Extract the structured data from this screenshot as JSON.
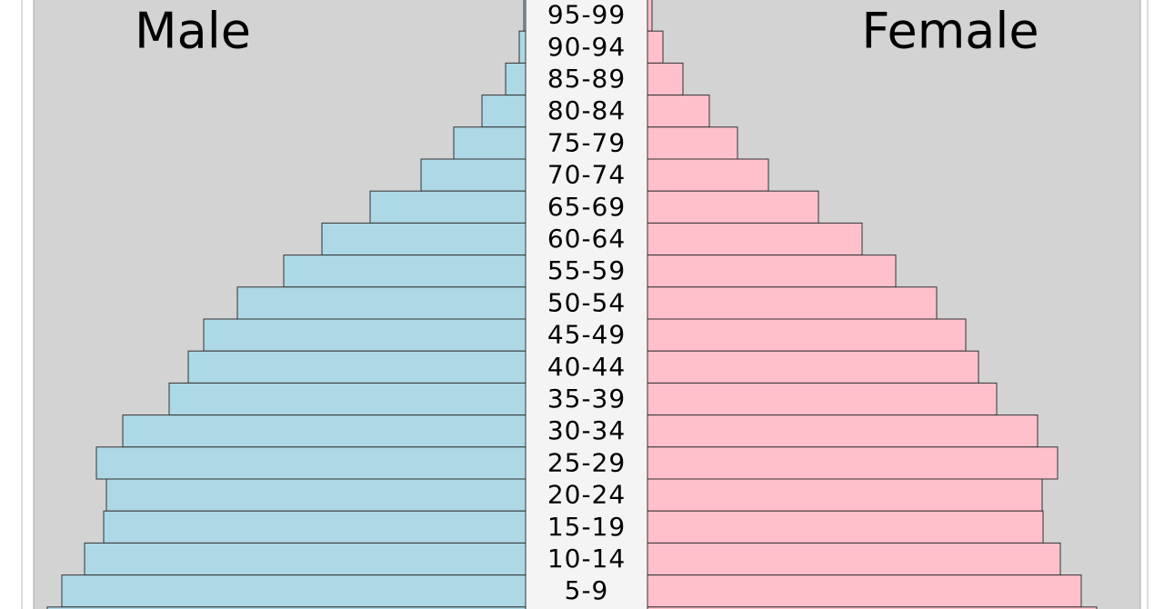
{
  "chart_data": {
    "type": "pyramid",
    "series": [
      {
        "name": "Male",
        "color": "#add8e6",
        "values": [
          2,
          7,
          22,
          48,
          79,
          115,
          171,
          224,
          266,
          317,
          354,
          371,
          392,
          443,
          472,
          461,
          464,
          485,
          510,
          526
        ]
      },
      {
        "name": "Female",
        "color": "#ffc0cb",
        "values": [
          5,
          17,
          39,
          68,
          99,
          133,
          188,
          236,
          273,
          318,
          350,
          364,
          384,
          429,
          451,
          434,
          435,
          454,
          477,
          494
        ]
      }
    ],
    "categories": [
      "95-99",
      "90-94",
      "85-89",
      "80-84",
      "75-79",
      "70-74",
      "65-69",
      "60-64",
      "55-59",
      "50-54",
      "45-49",
      "40-44",
      "35-39",
      "30-34",
      "25-29",
      "20-24",
      "15-19",
      "10-14",
      "5-9",
      null
    ]
  }
}
